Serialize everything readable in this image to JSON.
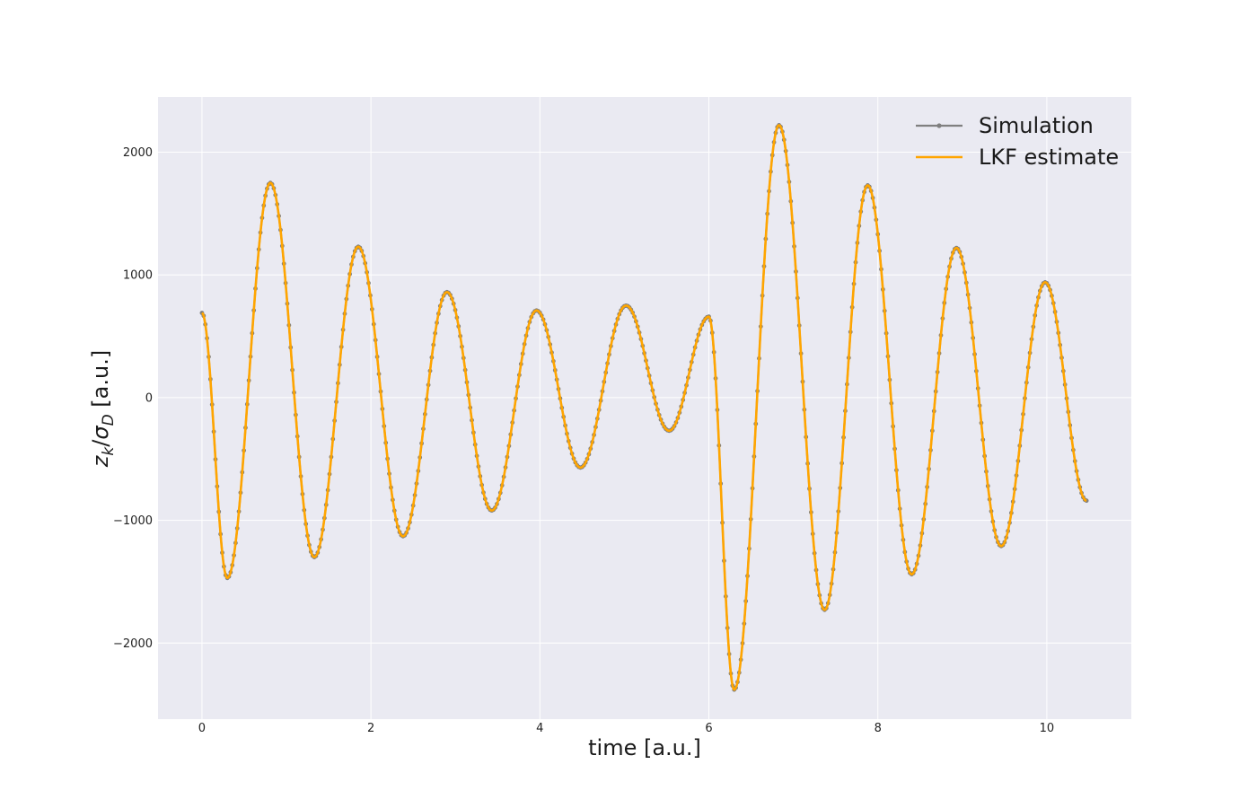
{
  "chart_data": {
    "type": "line",
    "title": "",
    "xlabel": "time [a.u.]",
    "ylabel_main": "z",
    "ylabel_sub_k": "k",
    "ylabel_sep": "/",
    "ylabel_sigma": "σ",
    "ylabel_sub_D": "D",
    "ylabel_units": " [a.u.]",
    "xlim": [
      -0.52,
      11.0
    ],
    "ylim": [
      -2620,
      2450
    ],
    "xticks": [
      0,
      2,
      4,
      6,
      8,
      10
    ],
    "xtick_labels": [
      "0",
      "2",
      "4",
      "6",
      "8",
      "10"
    ],
    "yticks": [
      -2000,
      -1000,
      0,
      1000,
      2000
    ],
    "ytick_labels": [
      "−2000",
      "−1000",
      "0",
      "1000",
      "2000"
    ],
    "grid": true,
    "legend_position": "top-right",
    "colors": {
      "background": "#eaeaf2",
      "grid": "#ffffff",
      "simulation": "#808080",
      "estimate": "#ffa500"
    },
    "series": [
      {
        "name": "Simulation",
        "style": "line-with-markers",
        "x": [
          0,
          0.3,
          0.81,
          1.33,
          1.85,
          2.38,
          2.9,
          3.43,
          3.96,
          4.48,
          5.02,
          5.53,
          6.0,
          6.3,
          6.83,
          7.37,
          7.88,
          8.4,
          8.93,
          9.46,
          9.98,
          10.47
        ],
        "y": [
          690,
          -1470,
          1750,
          -1300,
          1230,
          -1130,
          860,
          -920,
          710,
          -570,
          750,
          -270,
          660,
          -2380,
          2220,
          -1730,
          1730,
          -1440,
          1220,
          -1210,
          940,
          -840
        ]
      },
      {
        "name": "LKF estimate",
        "style": "line",
        "x": [
          0,
          0.3,
          0.81,
          1.33,
          1.85,
          2.38,
          2.9,
          3.43,
          3.96,
          4.48,
          5.02,
          5.53,
          6.0,
          6.3,
          6.83,
          7.37,
          7.88,
          8.4,
          8.93,
          9.46,
          9.98,
          10.47
        ],
        "y": [
          690,
          -1470,
          1750,
          -1300,
          1230,
          -1130,
          860,
          -920,
          710,
          -570,
          750,
          -270,
          660,
          -2380,
          2220,
          -1730,
          1730,
          -1440,
          1220,
          -1210,
          940,
          -840
        ]
      }
    ]
  }
}
